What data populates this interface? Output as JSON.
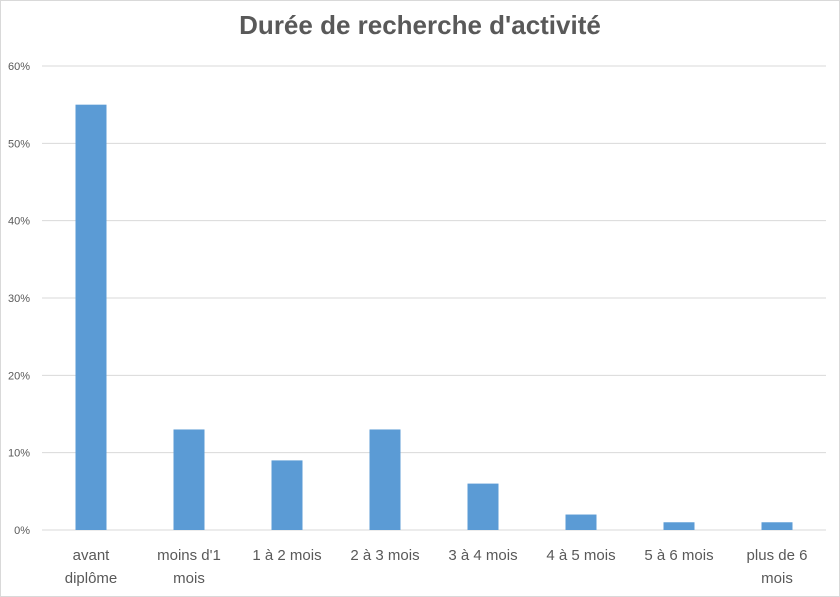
{
  "chart_data": {
    "type": "bar",
    "title": "Durée de recherche d'activité",
    "xlabel": "",
    "ylabel": "",
    "categories": [
      [
        "avant",
        "diplôme"
      ],
      [
        "moins d'1",
        "mois"
      ],
      [
        "1 à 2 mois"
      ],
      [
        "2 à 3 mois"
      ],
      [
        "3 à 4 mois"
      ],
      [
        "4 à 5 mois"
      ],
      [
        "5 à 6 mois"
      ],
      [
        "plus de 6",
        "mois"
      ]
    ],
    "values": [
      55,
      13,
      9,
      13,
      6,
      2,
      1,
      1
    ],
    "ylim": [
      0,
      60
    ],
    "yticks": [
      "0%",
      "10%",
      "20%",
      "30%",
      "40%",
      "50%",
      "60%"
    ],
    "bar_color": "#5b9bd5",
    "grid_color": "#d9d9d9",
    "grid": true,
    "legend": "none"
  }
}
